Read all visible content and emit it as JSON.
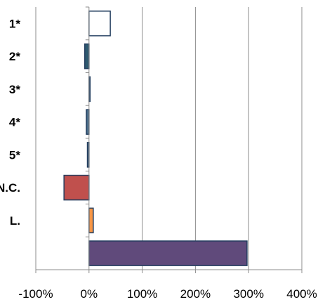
{
  "chart_data": {
    "type": "bar",
    "orientation": "horizontal",
    "categories": [
      "1*",
      "2*",
      "3*",
      "4*",
      "5*",
      "N.C.",
      "L.",
      ""
    ],
    "values": [
      40,
      -8,
      2,
      -5,
      -3,
      -47,
      8,
      297
    ],
    "bar_colors": [
      "#ffffff",
      "#2e5a70",
      "#4a6e8a",
      "#4a6e8a",
      "#4a6e8a",
      "#c0504d",
      "#f79646",
      "#604a7b"
    ],
    "bar_stroke": "#243f60",
    "title": "",
    "xlabel": "",
    "ylabel": "",
    "xlim": [
      -100,
      400
    ],
    "xticks": [
      -100,
      0,
      100,
      200,
      300,
      400
    ],
    "xtick_labels": [
      "-100%",
      "0%",
      "100%",
      "200%",
      "300%",
      "400%"
    ],
    "grid": "vertical",
    "legend": "none"
  }
}
